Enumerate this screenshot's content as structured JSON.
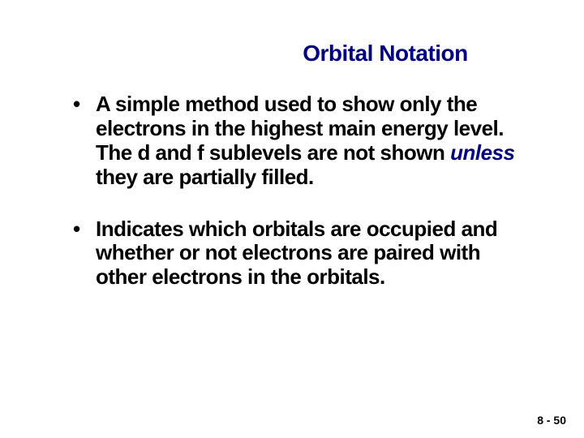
{
  "colors": {
    "title": "#000080",
    "body": "#000000",
    "emph": "#000080",
    "footer": "#000000",
    "background": "#ffffff"
  },
  "title": "Orbital Notation",
  "bullets": [
    {
      "pre": "A simple method used to show only the electrons in the highest main energy level.  The d and f sublevels are not shown ",
      "emph": "unless",
      "post": " they are partially filled."
    },
    {
      "pre": "Indicates which orbitals are occupied and whether or not electrons are paired with other electrons in the orbitals.",
      "emph": "",
      "post": ""
    }
  ],
  "footer": "8 -  50"
}
